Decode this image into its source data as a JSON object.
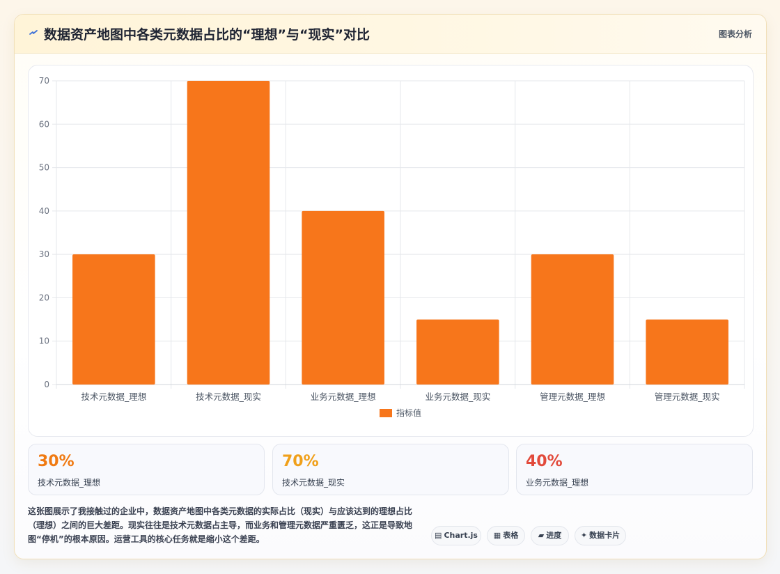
{
  "header": {
    "title": "数据资产地图中各类元数据占比的“理想”与“现实”对比",
    "tag": "图表分析",
    "icon": "lightning-icon"
  },
  "chart_data": {
    "type": "bar",
    "categories": [
      "技术元数据_理想",
      "技术元数据_现实",
      "业务元数据_理想",
      "业务元数据_现实",
      "管理元数据_理想",
      "管理元数据_现实"
    ],
    "series": [
      {
        "name": "指标值",
        "values": [
          30,
          70,
          40,
          15,
          30,
          15
        ],
        "color": "#f7761b"
      }
    ],
    "ylim": [
      0,
      70
    ],
    "yticks": [
      0,
      10,
      20,
      30,
      40,
      50,
      60,
      70
    ],
    "grid": true,
    "legend": "bottom"
  },
  "stats": [
    {
      "value": "30%",
      "label": "技术元数据_理想",
      "color": "#f07a12"
    },
    {
      "value": "70%",
      "label": "技术元数据_现实",
      "color": "#f0a01a"
    },
    {
      "value": "40%",
      "label": "业务元数据_理想",
      "color": "#e24a3b"
    }
  ],
  "description": "这张图展示了我接触过的企业中，数据资产地图中各类元数据的实际占比（现实）与应该达到的理想占比（理想）之间的巨大差距。现实往往是技术元数据占主导，而业务和管理元数据严重匮乏，这正是导致地图“停机”的根本原因。运营工具的核心任务就是缩小这个差距。",
  "chips": [
    {
      "icon": "chart-icon",
      "glyph": "▤",
      "label": "Chart.js"
    },
    {
      "icon": "table-icon",
      "glyph": "▦",
      "label": "表格"
    },
    {
      "icon": "progress-icon",
      "glyph": "▰",
      "label": "进度"
    },
    {
      "icon": "sparkle-icon",
      "glyph": "✦",
      "label": "数据卡片"
    }
  ]
}
